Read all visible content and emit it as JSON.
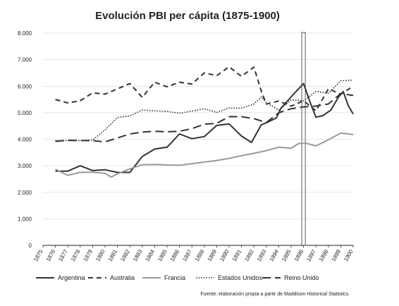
{
  "chart_data": {
    "type": "line",
    "title": "Evolución PBI per cápita (1875-1900)",
    "source": "Fuente: elaboración propia a partir de Maddison Historical Statistics.",
    "xlabel": "",
    "ylabel": "",
    "x": [
      1875,
      1876,
      1877,
      1878,
      1879,
      1880,
      1881,
      1882,
      1883,
      1884,
      1885,
      1886,
      1887,
      1888,
      1889,
      1890,
      1891,
      1892,
      1893,
      1894,
      1895,
      1896,
      1897,
      1898,
      1899,
      1900
    ],
    "x_ticks": [
      "1875",
      "1876",
      "1877",
      "1878",
      "1879",
      "1880",
      "1881",
      "1882",
      "1883",
      "1884",
      "1885",
      "1886",
      "1887",
      "1888",
      "1889",
      "1890",
      "1891",
      "1892",
      "1893",
      "1894",
      "1895",
      "1896",
      "1897",
      "1898",
      "1899",
      "1900"
    ],
    "y_ticks": [
      {
        "value": 0,
        "label": "0"
      },
      {
        "value": 1000,
        "label": "1.000"
      },
      {
        "value": 2000,
        "label": "2.000"
      },
      {
        "value": 3000,
        "label": "3.000"
      },
      {
        "value": 4000,
        "label": "4.000"
      },
      {
        "value": 5000,
        "label": "5.000"
      },
      {
        "value": 6000,
        "label": "6.000"
      },
      {
        "value": 7000,
        "label": "7.000"
      },
      {
        "value": 8000,
        "label": "8.000"
      }
    ],
    "ylim": [
      0,
      8000
    ],
    "grid": true,
    "legend_position": "bottom",
    "highlight_year": 1896,
    "series": [
      {
        "name": "Argentina",
        "style": "solid",
        "color": "#333333",
        "points": [
          [
            1876,
            2800
          ],
          [
            1877,
            2800
          ],
          [
            1878,
            3000
          ],
          [
            1879,
            2820
          ],
          [
            1880,
            2850
          ],
          [
            1881,
            2750
          ],
          [
            1882,
            2750
          ],
          [
            1883,
            3350
          ],
          [
            1884,
            3630
          ],
          [
            1885,
            3700
          ],
          [
            1886,
            4200
          ],
          [
            1887,
            4020
          ],
          [
            1888,
            4100
          ],
          [
            1889,
            4520
          ],
          [
            1890,
            4580
          ],
          [
            1891,
            4120
          ],
          [
            1891.8,
            3880
          ],
          [
            1892.6,
            4550
          ],
          [
            1893,
            4620
          ],
          [
            1893.8,
            4800
          ],
          [
            1894.2,
            5180
          ],
          [
            1895.2,
            5700
          ],
          [
            1896,
            6100
          ],
          [
            1896.6,
            5300
          ],
          [
            1897,
            4830
          ],
          [
            1897.6,
            4900
          ],
          [
            1898.2,
            5100
          ],
          [
            1898.8,
            5580
          ],
          [
            1899.2,
            5800
          ],
          [
            1899.6,
            5270
          ],
          [
            1900,
            4950
          ]
        ]
      },
      {
        "name": "Australia",
        "style": "dashed",
        "color": "#333333",
        "points": [
          [
            1876,
            5500
          ],
          [
            1877,
            5370
          ],
          [
            1878,
            5450
          ],
          [
            1879,
            5750
          ],
          [
            1880,
            5700
          ],
          [
            1881,
            5900
          ],
          [
            1882,
            6100
          ],
          [
            1883,
            5580
          ],
          [
            1884,
            6150
          ],
          [
            1885,
            5980
          ],
          [
            1886,
            6150
          ],
          [
            1887,
            6080
          ],
          [
            1888,
            6500
          ],
          [
            1889,
            6400
          ],
          [
            1890,
            6730
          ],
          [
            1891,
            6370
          ],
          [
            1892,
            6720
          ],
          [
            1892.6,
            5800
          ],
          [
            1893,
            5330
          ],
          [
            1894,
            5440
          ],
          [
            1895,
            5250
          ],
          [
            1896,
            5450
          ],
          [
            1897,
            5070
          ],
          [
            1898,
            5900
          ],
          [
            1899,
            5700
          ],
          [
            1900,
            6000
          ]
        ]
      },
      {
        "name": "Francia",
        "style": "solid",
        "color": "#9a9a9a",
        "points": [
          [
            1876,
            2870
          ],
          [
            1877,
            2640
          ],
          [
            1878,
            2750
          ],
          [
            1879,
            2760
          ],
          [
            1880,
            2720
          ],
          [
            1880.5,
            2570
          ],
          [
            1881,
            2700
          ],
          [
            1882,
            2880
          ],
          [
            1883,
            3040
          ],
          [
            1884,
            3050
          ],
          [
            1885,
            3030
          ],
          [
            1886,
            3020
          ],
          [
            1887,
            3080
          ],
          [
            1888,
            3140
          ],
          [
            1889,
            3200
          ],
          [
            1890,
            3280
          ],
          [
            1891,
            3380
          ],
          [
            1892,
            3470
          ],
          [
            1893,
            3570
          ],
          [
            1894,
            3700
          ],
          [
            1895,
            3660
          ],
          [
            1895.6,
            3840
          ],
          [
            1896.2,
            3850
          ],
          [
            1897,
            3750
          ],
          [
            1898,
            3980
          ],
          [
            1899,
            4230
          ],
          [
            1900,
            4180
          ]
        ]
      },
      {
        "name": "Estados Unidos",
        "style": "dotted",
        "color": "#333333",
        "points": [
          [
            1876,
            3950
          ],
          [
            1877,
            3950
          ],
          [
            1878,
            3950
          ],
          [
            1879,
            3970
          ],
          [
            1880,
            4350
          ],
          [
            1881,
            4820
          ],
          [
            1882,
            4880
          ],
          [
            1883,
            5100
          ],
          [
            1884,
            5070
          ],
          [
            1885,
            5050
          ],
          [
            1886,
            4980
          ],
          [
            1887,
            5060
          ],
          [
            1888,
            5150
          ],
          [
            1889,
            5010
          ],
          [
            1890,
            5180
          ],
          [
            1891,
            5170
          ],
          [
            1892,
            5330
          ],
          [
            1892.6,
            5600
          ],
          [
            1893,
            5380
          ],
          [
            1894,
            5100
          ],
          [
            1895,
            5480
          ],
          [
            1896,
            5450
          ],
          [
            1897,
            5800
          ],
          [
            1898,
            5740
          ],
          [
            1899,
            6200
          ],
          [
            1900,
            6230
          ]
        ]
      },
      {
        "name": "Reino Unido",
        "style": "longdash",
        "color": "#333333",
        "points": [
          [
            1876,
            3920
          ],
          [
            1877,
            3960
          ],
          [
            1878,
            3950
          ],
          [
            1879,
            3950
          ],
          [
            1880,
            3900
          ],
          [
            1881,
            4050
          ],
          [
            1882,
            4200
          ],
          [
            1883,
            4270
          ],
          [
            1884,
            4300
          ],
          [
            1885,
            4280
          ],
          [
            1886,
            4300
          ],
          [
            1887,
            4400
          ],
          [
            1888,
            4570
          ],
          [
            1889,
            4600
          ],
          [
            1890,
            4850
          ],
          [
            1891,
            4850
          ],
          [
            1892,
            4780
          ],
          [
            1893,
            4630
          ],
          [
            1894,
            5000
          ],
          [
            1895,
            5150
          ],
          [
            1896,
            5220
          ],
          [
            1897,
            5250
          ],
          [
            1898,
            5330
          ],
          [
            1899,
            5720
          ],
          [
            1900,
            5650
          ]
        ]
      }
    ]
  }
}
